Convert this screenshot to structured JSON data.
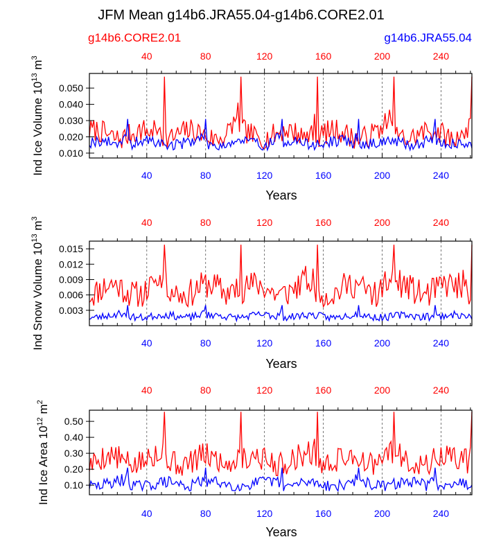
{
  "title": "JFM Mean g14b6.JRA55.04-g14b6.CORE2.01",
  "legend": {
    "left": "g14b6.CORE2.01",
    "right": "g14b6.JRA55.04",
    "left_color": "#ff0000",
    "right_color": "#0000ff"
  },
  "colors": {
    "core": "#ff0000",
    "jra": "#0000ff",
    "axis": "#000000"
  },
  "chart_data": [
    {
      "type": "line",
      "title": "",
      "xlabel": "Years",
      "ylabel_main": "Ind Ice Volume 10",
      "ylabel_exp": "13",
      "ylabel_unit": " m",
      "ylabel_unit_exp": "3",
      "xlim": [
        1,
        261
      ],
      "ylim": [
        0.007,
        0.059
      ],
      "yticks": [
        0.01,
        0.02,
        0.03,
        0.04,
        0.05
      ],
      "ytick_labels": [
        "0.010",
        "0.020",
        "0.030",
        "0.040",
        "0.050"
      ],
      "xticks": [
        40,
        80,
        120,
        160,
        200,
        240
      ],
      "xtick_labels": [
        "40",
        "80",
        "120",
        "160",
        "200",
        "240"
      ],
      "series": [
        {
          "name": "g14b6.CORE2.01",
          "color": "#ff0000",
          "base": 0.02,
          "amp": 0.009,
          "spike": 0.057,
          "spikes": [
            52,
            104,
            156,
            208,
            261
          ],
          "seed": 7
        },
        {
          "name": "g14b6.JRA55.04",
          "color": "#0000ff",
          "base": 0.0155,
          "amp": 0.0045,
          "spike": 0.031,
          "spikes": [
            27,
            80,
            132,
            184,
            236
          ],
          "seed": 19
        }
      ]
    },
    {
      "type": "line",
      "title": "",
      "xlabel": "Years",
      "ylabel_main": "Ind Snow Volume 10",
      "ylabel_exp": "13",
      "ylabel_unit": " m",
      "ylabel_unit_exp": "3",
      "xlim": [
        1,
        261
      ],
      "ylim": [
        0,
        0.0165
      ],
      "yticks": [
        0.003,
        0.006,
        0.009,
        0.012,
        0.015
      ],
      "ytick_labels": [
        "0.003",
        "0.006",
        "0.009",
        "0.012",
        "0.015"
      ],
      "xticks": [
        40,
        80,
        120,
        160,
        200,
        240
      ],
      "xtick_labels": [
        "40",
        "80",
        "120",
        "160",
        "200",
        "240"
      ],
      "series": [
        {
          "name": "g14b6.CORE2.01",
          "color": "#ff0000",
          "base": 0.0065,
          "amp": 0.0035,
          "spike": 0.0158,
          "spikes": [
            52,
            104,
            156,
            208,
            261
          ],
          "seed": 11
        },
        {
          "name": "g14b6.JRA55.04",
          "color": "#0000ff",
          "base": 0.0017,
          "amp": 0.0009,
          "spike": 0.004,
          "spikes": [
            27,
            80,
            132,
            184,
            236
          ],
          "seed": 23
        }
      ]
    },
    {
      "type": "line",
      "title": "",
      "xlabel": "Years",
      "ylabel_main": "Ind Ice Area 10",
      "ylabel_exp": "12",
      "ylabel_unit": " m",
      "ylabel_unit_exp": "2",
      "xlim": [
        1,
        261
      ],
      "ylim": [
        0.04,
        0.57
      ],
      "yticks": [
        0.1,
        0.2,
        0.3,
        0.4,
        0.5
      ],
      "ytick_labels": [
        "0.10",
        "0.20",
        "0.30",
        "0.40",
        "0.50"
      ],
      "xticks": [
        40,
        80,
        120,
        160,
        200,
        240
      ],
      "xtick_labels": [
        "40",
        "80",
        "120",
        "160",
        "200",
        "240"
      ],
      "series": [
        {
          "name": "g14b6.CORE2.01",
          "color": "#ff0000",
          "base": 0.24,
          "amp": 0.1,
          "spike": 0.56,
          "spikes": [
            52,
            104,
            156,
            208,
            261
          ],
          "seed": 5
        },
        {
          "name": "g14b6.JRA55.04",
          "color": "#0000ff",
          "base": 0.1,
          "amp": 0.045,
          "spike": 0.21,
          "spikes": [
            27,
            80,
            132,
            184,
            236
          ],
          "seed": 29
        }
      ]
    }
  ],
  "dashed_years": [
    40,
    80,
    120,
    160,
    200,
    240
  ]
}
